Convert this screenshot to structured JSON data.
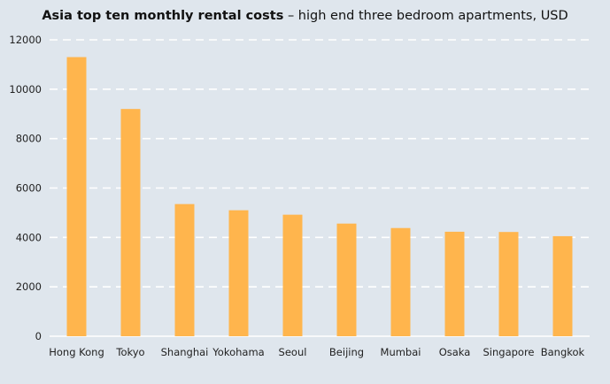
{
  "chart_data": {
    "type": "bar",
    "title": "Asia top ten monthly rental costs",
    "subtitle": "– high end three bedroom apartments, USD",
    "categories": [
      "Hong Kong",
      "Tokyo",
      "Shanghai",
      "Yokohama",
      "Seoul",
      "Beijing",
      "Mumbai",
      "Osaka",
      "Singapore",
      "Bangkok"
    ],
    "values": [
      11300,
      9200,
      5350,
      5100,
      4920,
      4560,
      4380,
      4230,
      4220,
      4050
    ],
    "xlabel": "",
    "ylabel": "",
    "ylim": [
      0,
      12000
    ],
    "yticks": [
      0,
      2000,
      4000,
      6000,
      8000,
      10000,
      12000
    ],
    "grid": true,
    "bar_color": "#ffb54d",
    "grid_color": "#ffffff",
    "background_color": "#dfe6ed"
  }
}
